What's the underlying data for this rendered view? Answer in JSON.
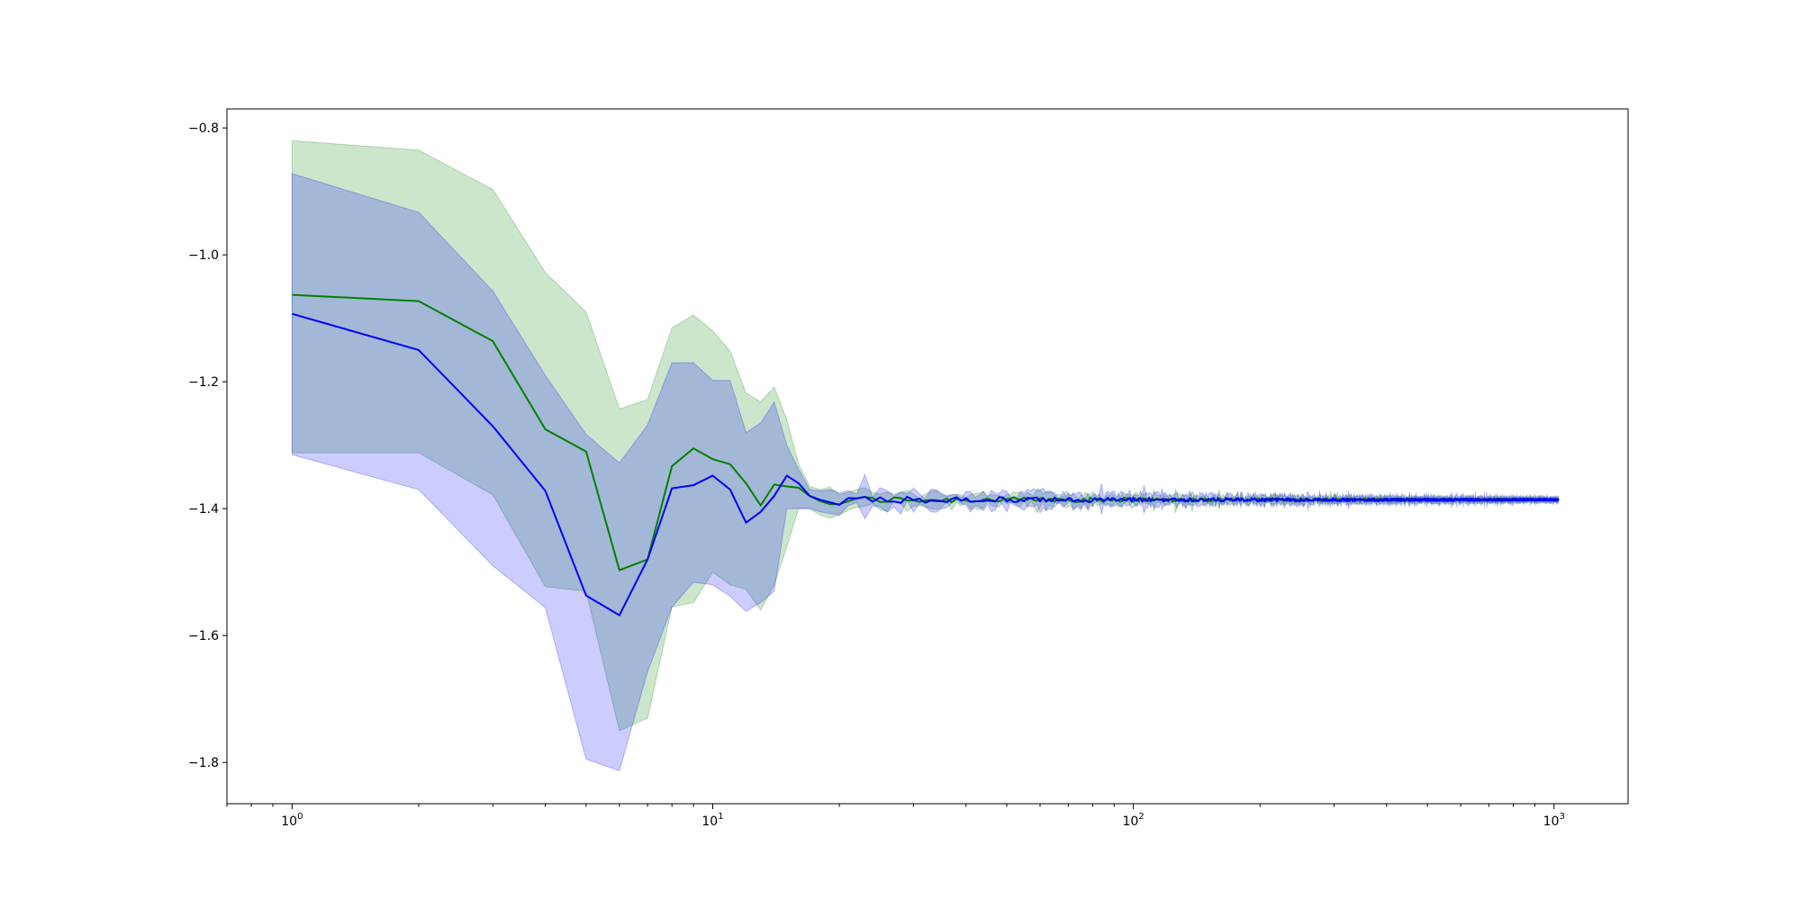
{
  "chart_data": {
    "type": "line",
    "title": "",
    "xlabel": "",
    "ylabel": "",
    "xscale": "log",
    "xlim": [
      0.7,
      1500
    ],
    "ylim": [
      -1.865,
      -0.77
    ],
    "grid": false,
    "legend": "none",
    "x_major_ticks": [
      {
        "value": 1,
        "base": "10",
        "exp": "0"
      },
      {
        "value": 10,
        "base": "10",
        "exp": "1"
      },
      {
        "value": 100,
        "base": "10",
        "exp": "2"
      },
      {
        "value": 1000,
        "base": "10",
        "exp": "3"
      }
    ],
    "y_ticks": [
      {
        "value": -0.8,
        "label": "−0.8"
      },
      {
        "value": -1.0,
        "label": "−1.0"
      },
      {
        "value": -1.2,
        "label": "−1.2"
      },
      {
        "value": -1.4,
        "label": "−1.4"
      },
      {
        "value": -1.6,
        "label": "−1.6"
      },
      {
        "value": -1.8,
        "label": "−1.8"
      }
    ],
    "converged_value": -1.386,
    "noise_tail_end": 1024,
    "series": [
      {
        "color": "#008000",
        "band_color": "#008000",
        "band_opacity": 0.2,
        "x": [
          1,
          2,
          3,
          4,
          5,
          6,
          7,
          8,
          9,
          10,
          11,
          12,
          13,
          14,
          15,
          16,
          17,
          18,
          19,
          20
        ],
        "mean": [
          -1.063,
          -1.073,
          -1.136,
          -1.275,
          -1.31,
          -1.497,
          -1.48,
          -1.333,
          -1.305,
          -1.322,
          -1.33,
          -1.36,
          -1.395,
          -1.362,
          -1.365,
          -1.367,
          -1.38,
          -1.388,
          -1.393,
          -1.393
        ],
        "upper": [
          -0.82,
          -0.835,
          -0.897,
          -1.028,
          -1.09,
          -1.243,
          -1.228,
          -1.115,
          -1.095,
          -1.12,
          -1.152,
          -1.218,
          -1.232,
          -1.208,
          -1.26,
          -1.33,
          -1.365,
          -1.37,
          -1.366,
          -1.378
        ],
        "lower": [
          -1.312,
          -1.312,
          -1.378,
          -1.523,
          -1.53,
          -1.75,
          -1.73,
          -1.555,
          -1.548,
          -1.5,
          -1.52,
          -1.527,
          -1.56,
          -1.52,
          -1.46,
          -1.4,
          -1.4,
          -1.41,
          -1.415,
          -1.41
        ]
      },
      {
        "color": "#0000ff",
        "band_color": "#0000ff",
        "band_opacity": 0.2,
        "x": [
          1,
          2,
          3,
          4,
          5,
          6,
          7,
          8,
          9,
          10,
          11,
          12,
          13,
          14,
          15,
          16,
          17,
          18,
          19,
          20
        ],
        "mean": [
          -1.093,
          -1.15,
          -1.27,
          -1.372,
          -1.537,
          -1.568,
          -1.48,
          -1.368,
          -1.363,
          -1.348,
          -1.37,
          -1.422,
          -1.405,
          -1.38,
          -1.348,
          -1.36,
          -1.38,
          -1.386,
          -1.39,
          -1.394
        ],
        "upper": [
          -0.872,
          -0.933,
          -1.057,
          -1.19,
          -1.283,
          -1.328,
          -1.268,
          -1.17,
          -1.17,
          -1.198,
          -1.198,
          -1.28,
          -1.265,
          -1.232,
          -1.3,
          -1.338,
          -1.37,
          -1.372,
          -1.37,
          -1.375
        ],
        "lower": [
          -1.315,
          -1.37,
          -1.49,
          -1.556,
          -1.795,
          -1.813,
          -1.657,
          -1.555,
          -1.516,
          -1.52,
          -1.538,
          -1.562,
          -1.548,
          -1.53,
          -1.4,
          -1.4,
          -1.4,
          -1.405,
          -1.408,
          -1.41
        ]
      }
    ]
  }
}
